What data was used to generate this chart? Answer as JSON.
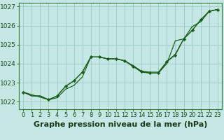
{
  "xlabel": "Graphe pression niveau de la mer (hPa)",
  "background_color": "#c5e8e5",
  "grid_color": "#9dc8c5",
  "line_color": "#1a5c1a",
  "marker_color": "#1a5c1a",
  "ylim": [
    1021.6,
    1027.2
  ],
  "xlim": [
    -0.5,
    23.5
  ],
  "yticks": [
    1022,
    1023,
    1024,
    1025,
    1026,
    1027
  ],
  "xticks": [
    0,
    1,
    2,
    3,
    4,
    5,
    6,
    7,
    8,
    9,
    10,
    11,
    12,
    13,
    14,
    15,
    16,
    17,
    18,
    19,
    20,
    21,
    22,
    23
  ],
  "series1_x": [
    0,
    1,
    2,
    3,
    4,
    5,
    6,
    7,
    8,
    9,
    10,
    11,
    12,
    13,
    14,
    15,
    16,
    17,
    18,
    19,
    20,
    21,
    22,
    23
  ],
  "series1": [
    1022.5,
    1022.3,
    1022.3,
    1022.1,
    1022.3,
    1022.8,
    1023.1,
    1023.55,
    1024.35,
    1024.35,
    1024.25,
    1024.25,
    1024.15,
    1023.9,
    1023.6,
    1023.55,
    1023.55,
    1024.1,
    1024.5,
    1025.3,
    1025.75,
    1026.3,
    1026.75,
    1026.85
  ],
  "series2_x": [
    0,
    1,
    2,
    3,
    4,
    5,
    6,
    7,
    8,
    9,
    10,
    11,
    12,
    13,
    14,
    15,
    16,
    17,
    18,
    19,
    20,
    21,
    22,
    23
  ],
  "series2": [
    1022.5,
    1022.3,
    1022.3,
    1022.1,
    1022.2,
    1022.65,
    1022.85,
    1023.3,
    1024.35,
    1024.35,
    1024.25,
    1024.25,
    1024.15,
    1023.85,
    1023.55,
    1023.5,
    1023.5,
    1024.0,
    1025.2,
    1025.3,
    1025.95,
    1026.2,
    1026.75,
    1026.85
  ],
  "series3_x": [
    0,
    3,
    4,
    5,
    6,
    7,
    8,
    9,
    10,
    11,
    12,
    13,
    14,
    15,
    16,
    17,
    18,
    19,
    20,
    21,
    22,
    23
  ],
  "series3": [
    1022.5,
    1022.1,
    1022.3,
    1022.8,
    1023.1,
    1023.55,
    1024.35,
    1024.35,
    1024.25,
    1024.25,
    1024.15,
    1023.85,
    1023.6,
    1023.5,
    1023.5,
    1024.1,
    1024.45,
    1025.3,
    1025.75,
    1026.3,
    1026.75,
    1026.85
  ],
  "xlabel_fontsize": 8,
  "xlabel_fontweight": "bold",
  "tick_fontsize": 6.5
}
